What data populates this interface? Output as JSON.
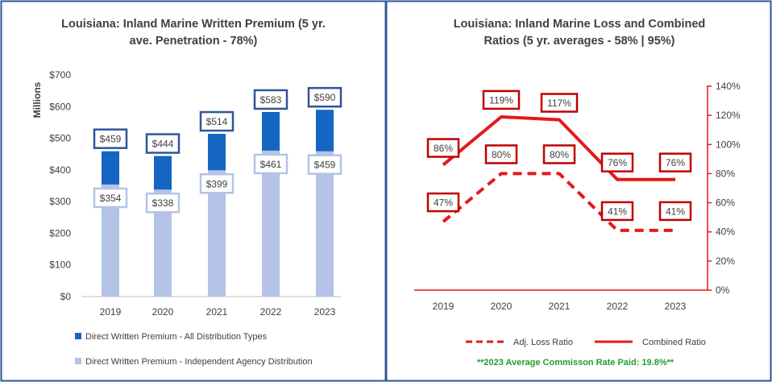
{
  "chart_data": [
    {
      "type": "bar",
      "title_lines": [
        "Louisiana: Inland Marine Written Premium (5 yr.",
        "ave. Penetration - 78%)"
      ],
      "ylabel": "Millions",
      "categories": [
        "2019",
        "2020",
        "2021",
        "2022",
        "2023"
      ],
      "ylim": [
        0,
        700
      ],
      "yticks": [
        0,
        100,
        200,
        300,
        400,
        500,
        600,
        700
      ],
      "ytick_labels": [
        "$0",
        "$100",
        "$200",
        "$300",
        "$400",
        "$500",
        "$600",
        "$700"
      ],
      "series": [
        {
          "name": "Direct Written Premium - All Distribution Types",
          "values": [
            459,
            444,
            514,
            583,
            590
          ],
          "labels": [
            "$459",
            "$444",
            "$514",
            "$583",
            "$590"
          ],
          "color": "#1466c2"
        },
        {
          "name": "Direct Written Premium - Independent Agency Distribution",
          "values": [
            354,
            338,
            399,
            461,
            459
          ],
          "labels": [
            "$354",
            "$338",
            "$399",
            "$461",
            "$459"
          ],
          "color": "#b4c3e6"
        }
      ],
      "legend_position": "bottom"
    },
    {
      "type": "line",
      "title_lines": [
        "Louisiana: Inland Marine Loss and Combined",
        "Ratios (5 yr. averages - 58% | 95%)"
      ],
      "categories": [
        "2019",
        "2020",
        "2021",
        "2022",
        "2023"
      ],
      "y_axis_side": "right",
      "ylim": [
        0,
        140
      ],
      "yticks": [
        0,
        20,
        40,
        60,
        80,
        100,
        120,
        140
      ],
      "ytick_labels": [
        "0%",
        "20%",
        "40%",
        "60%",
        "80%",
        "100%",
        "120%",
        "140%"
      ],
      "series": [
        {
          "name": "Combined Ratio",
          "values": [
            86,
            119,
            117,
            76,
            76
          ],
          "labels": [
            "86%",
            "119%",
            "117%",
            "76%",
            "76%"
          ],
          "style": "solid",
          "color": "#e31a1c"
        },
        {
          "name": "Adj. Loss Ratio",
          "values": [
            47,
            80,
            80,
            41,
            41
          ],
          "labels": [
            "47%",
            "80%",
            "80%",
            "41%",
            "41%"
          ],
          "style": "dashed",
          "color": "#e31a1c"
        }
      ],
      "legend_order": [
        "Adj. Loss Ratio",
        "Combined Ratio"
      ],
      "legend_position": "bottom",
      "footnote": "**2023 Average Commisson Rate Paid: 19.8%**",
      "footnote_color": "#1f9e2a"
    }
  ]
}
